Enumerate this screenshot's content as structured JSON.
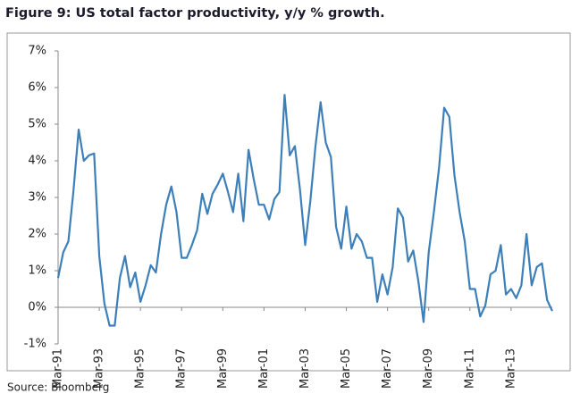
{
  "chart_data": {
    "type": "line",
    "title": "Figure 9: US total factor productivity, y/y % growth.",
    "source": "Source:  Bloomberg",
    "categories": [
      "Mar-91",
      null,
      null,
      null,
      null,
      null,
      null,
      null,
      "Mar-93",
      null,
      null,
      null,
      null,
      null,
      null,
      null,
      "Mar-95",
      null,
      null,
      null,
      null,
      null,
      null,
      null,
      "Mar-97",
      null,
      null,
      null,
      null,
      null,
      null,
      null,
      "Mar-99",
      null,
      null,
      null,
      null,
      null,
      null,
      null,
      "Mar-01",
      null,
      null,
      null,
      null,
      null,
      null,
      null,
      "Mar-03",
      null,
      null,
      null,
      null,
      null,
      null,
      null,
      "Mar-05",
      null,
      null,
      null,
      null,
      null,
      null,
      null,
      "Mar-07",
      null,
      null,
      null,
      null,
      null,
      null,
      null,
      "Mar-09",
      null,
      null,
      null,
      null,
      null,
      null,
      null,
      "Mar-11",
      null,
      null,
      null,
      null,
      null,
      null,
      null,
      "Mar-13",
      null,
      null,
      null,
      null,
      null,
      null,
      null,
      null
    ],
    "values": [
      0.8,
      1.5,
      1.8,
      3.2,
      4.85,
      4.0,
      4.15,
      4.2,
      1.4,
      0.1,
      -0.5,
      -0.5,
      0.8,
      1.4,
      0.55,
      0.95,
      0.15,
      0.6,
      1.15,
      0.95,
      2.0,
      2.8,
      3.3,
      2.6,
      1.35,
      1.35,
      1.7,
      2.1,
      3.1,
      2.55,
      3.1,
      3.35,
      3.65,
      3.15,
      2.6,
      3.65,
      2.35,
      4.3,
      3.5,
      2.8,
      2.8,
      2.4,
      2.95,
      3.15,
      5.8,
      4.15,
      4.4,
      3.2,
      1.7,
      2.9,
      4.4,
      5.6,
      4.5,
      4.1,
      2.2,
      1.6,
      2.75,
      1.6,
      2.0,
      1.8,
      1.35,
      1.35,
      0.15,
      0.9,
      0.35,
      1.1,
      2.7,
      2.45,
      1.25,
      1.55,
      0.7,
      -0.4,
      1.5,
      2.6,
      3.8,
      5.45,
      5.2,
      3.6,
      2.6,
      1.8,
      0.5,
      0.5,
      -0.25,
      0.05,
      0.9,
      1.0,
      1.7,
      0.35,
      0.5,
      0.25,
      0.6,
      2.0,
      0.6,
      1.1,
      1.2,
      0.2,
      -0.1
    ],
    "color": "#3d7fb8",
    "ylim": [
      -1,
      7
    ],
    "yticks": [
      {
        "value": -1,
        "label": "-1%"
      },
      {
        "value": 0,
        "label": "0%"
      },
      {
        "value": 1,
        "label": "1%"
      },
      {
        "value": 2,
        "label": "2%"
      },
      {
        "value": 3,
        "label": "3%"
      },
      {
        "value": 4,
        "label": "4%"
      },
      {
        "value": 5,
        "label": "5%"
      },
      {
        "value": 6,
        "label": "6%"
      },
      {
        "value": 7,
        "label": "7%"
      }
    ],
    "grid": false
  }
}
